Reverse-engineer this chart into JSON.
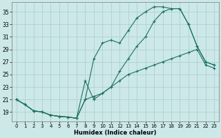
{
  "xlabel": "Humidex (Indice chaleur)",
  "bg_color": "#cce8e8",
  "grid_color": "#aacccc",
  "line_color": "#1a7060",
  "xlim": [
    -0.5,
    23.5
  ],
  "ylim": [
    17.5,
    36.5
  ],
  "yticks": [
    19,
    21,
    23,
    25,
    27,
    29,
    31,
    33,
    35
  ],
  "xticks": [
    0,
    1,
    2,
    3,
    4,
    5,
    6,
    7,
    8,
    9,
    10,
    11,
    12,
    13,
    14,
    15,
    16,
    17,
    18,
    19,
    20,
    21,
    22,
    23
  ],
  "line1_x": [
    0,
    1,
    2,
    3,
    4,
    5,
    6,
    7,
    8,
    9,
    10,
    11,
    12,
    13,
    14,
    15,
    16,
    17,
    18,
    19,
    20,
    21,
    22,
    23
  ],
  "line1_y": [
    21.0,
    20.2,
    19.2,
    19.0,
    18.5,
    18.3,
    18.2,
    18.0,
    21.0,
    27.5,
    30.0,
    30.5,
    30.0,
    32.0,
    34.0,
    35.0,
    35.8,
    35.8,
    35.5,
    35.5,
    33.0,
    29.5,
    27.0,
    26.5
  ],
  "line2_x": [
    0,
    1,
    2,
    3,
    4,
    5,
    6,
    7,
    8,
    9,
    10,
    11,
    12,
    13,
    14,
    15,
    16,
    17,
    18,
    19,
    20,
    21,
    22,
    23
  ],
  "line2_y": [
    21.0,
    20.2,
    19.2,
    19.0,
    18.5,
    18.3,
    18.2,
    18.0,
    24.0,
    21.0,
    22.0,
    23.0,
    25.5,
    27.5,
    29.5,
    31.0,
    33.5,
    35.0,
    35.5,
    35.5,
    33.0,
    29.5,
    27.0,
    26.5
  ],
  "line3_x": [
    0,
    1,
    2,
    3,
    4,
    5,
    6,
    7,
    8,
    9,
    10,
    11,
    12,
    13,
    14,
    15,
    16,
    17,
    18,
    19,
    20,
    21,
    22,
    23
  ],
  "line3_y": [
    21.0,
    20.2,
    19.2,
    19.0,
    18.5,
    18.3,
    18.2,
    18.0,
    21.0,
    21.5,
    22.0,
    23.0,
    24.0,
    25.0,
    25.5,
    26.0,
    26.5,
    27.0,
    27.5,
    28.0,
    28.5,
    29.0,
    26.5,
    26.0
  ]
}
